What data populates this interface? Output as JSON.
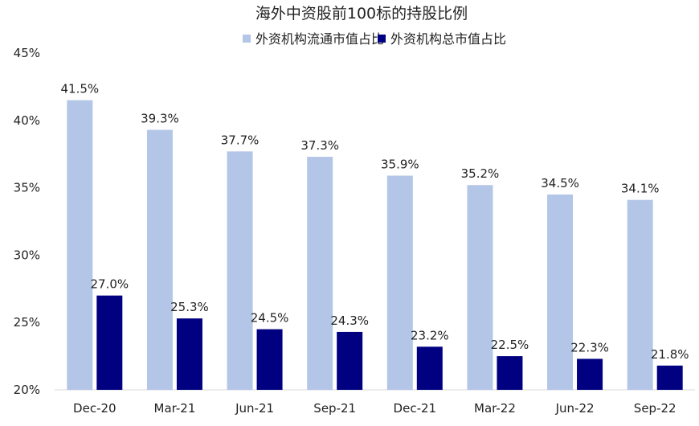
{
  "chart_data": {
    "type": "bar",
    "title": "海外中资股前100标的持股比例",
    "xlabel": "",
    "ylabel": "",
    "categories": [
      "Dec-20",
      "Mar-21",
      "Jun-21",
      "Sep-21",
      "Dec-21",
      "Mar-22",
      "Jun-22",
      "Sep-22"
    ],
    "series": [
      {
        "name": "外资机构流通市值占比",
        "color": "#b4c6e7",
        "values": [
          41.5,
          39.3,
          37.7,
          37.3,
          35.9,
          35.2,
          34.5,
          34.1
        ],
        "labels": [
          "41.5%",
          "39.3%",
          "37.7%",
          "37.3%",
          "35.9%",
          "35.2%",
          "34.5%",
          "34.1%"
        ]
      },
      {
        "name": "外资机构总市值占比",
        "color": "#000080",
        "values": [
          27.0,
          25.3,
          24.5,
          24.3,
          23.2,
          22.5,
          22.3,
          21.8
        ],
        "labels": [
          "27.0%",
          "25.3%",
          "24.5%",
          "24.3%",
          "23.2%",
          "22.5%",
          "22.3%",
          "21.8%"
        ]
      }
    ],
    "ylim": [
      20,
      45
    ],
    "yticks": [
      20,
      25,
      30,
      35,
      40,
      45
    ],
    "ytick_labels": [
      "20%",
      "25%",
      "30%",
      "35%",
      "40%",
      "45%"
    ],
    "grid": false,
    "legend_position": "top-center"
  }
}
